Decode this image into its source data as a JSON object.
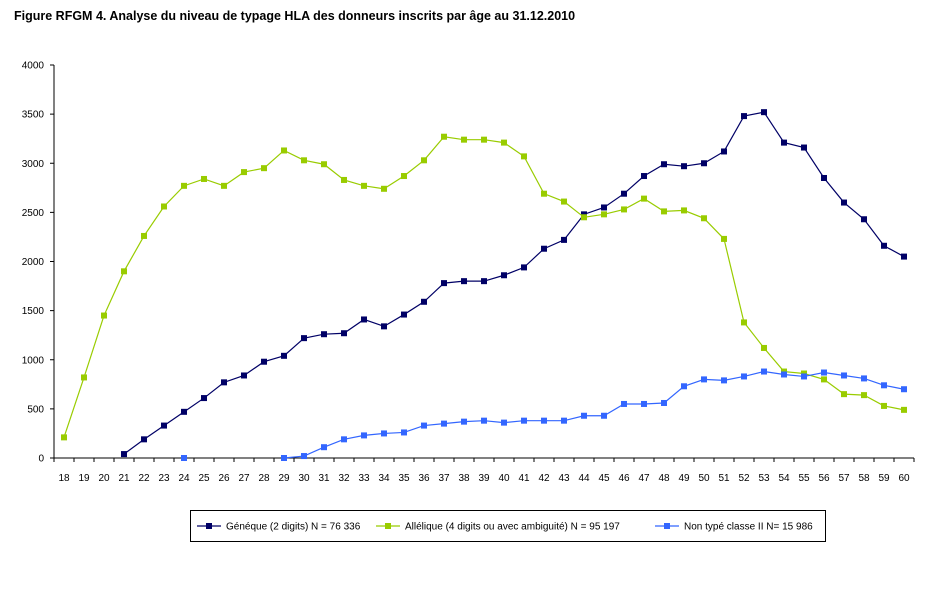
{
  "title": "Figure RFGM 4. Analyse du niveau de typage HLA des donneurs inscrits par âge au 31.12.2010",
  "chart_data": {
    "type": "line",
    "title": "Figure RFGM 4. Analyse du niveau de typage HLA des donneurs inscrits par âge au 31.12.2010",
    "xlabel": "",
    "ylabel": "",
    "ylim": [
      0,
      4000
    ],
    "yticks": [
      0,
      500,
      1000,
      1500,
      2000,
      2500,
      3000,
      3500,
      4000
    ],
    "grid": false,
    "legend_position": "bottom",
    "x": [
      18,
      19,
      20,
      21,
      22,
      23,
      24,
      25,
      26,
      27,
      28,
      29,
      30,
      31,
      32,
      33,
      34,
      35,
      36,
      37,
      38,
      39,
      40,
      41,
      42,
      43,
      44,
      45,
      46,
      47,
      48,
      49,
      50,
      51,
      52,
      53,
      54,
      55,
      56,
      57,
      58,
      59,
      60
    ],
    "series": [
      {
        "name": "Généque (2 digits) N = 76 336",
        "color": "#000066",
        "values": [
          null,
          null,
          null,
          40,
          190,
          330,
          470,
          610,
          770,
          840,
          980,
          1040,
          1220,
          1260,
          1270,
          1410,
          1340,
          1460,
          1590,
          1780,
          1800,
          1800,
          1860,
          1940,
          2130,
          2220,
          2480,
          2550,
          2690,
          2870,
          2990,
          2970,
          3000,
          3120,
          3480,
          3520,
          3210,
          3160,
          2850,
          2600,
          2430,
          2160,
          2050
        ]
      },
      {
        "name": "Allélique (4 digits ou avec ambiguité) N = 95 197",
        "color": "#99CC00",
        "values": [
          210,
          820,
          1450,
          1900,
          2260,
          2560,
          2770,
          2840,
          2770,
          2910,
          2950,
          3130,
          3030,
          2990,
          2830,
          2770,
          2740,
          2870,
          3030,
          3270,
          3240,
          3240,
          3210,
          3070,
          2690,
          2610,
          2450,
          2480,
          2530,
          2640,
          2510,
          2520,
          2440,
          2230,
          1380,
          1120,
          880,
          860,
          800,
          650,
          640,
          530,
          490
        ]
      },
      {
        "name": "Non typé classe II N= 15 986",
        "color": "#3366FF",
        "values": [
          null,
          null,
          null,
          null,
          null,
          null,
          0,
          null,
          null,
          null,
          null,
          0,
          20,
          110,
          190,
          230,
          250,
          260,
          330,
          350,
          370,
          380,
          360,
          380,
          380,
          380,
          430,
          430,
          550,
          550,
          560,
          730,
          800,
          790,
          830,
          880,
          850,
          830,
          870,
          840,
          810,
          740,
          700
        ]
      }
    ]
  }
}
